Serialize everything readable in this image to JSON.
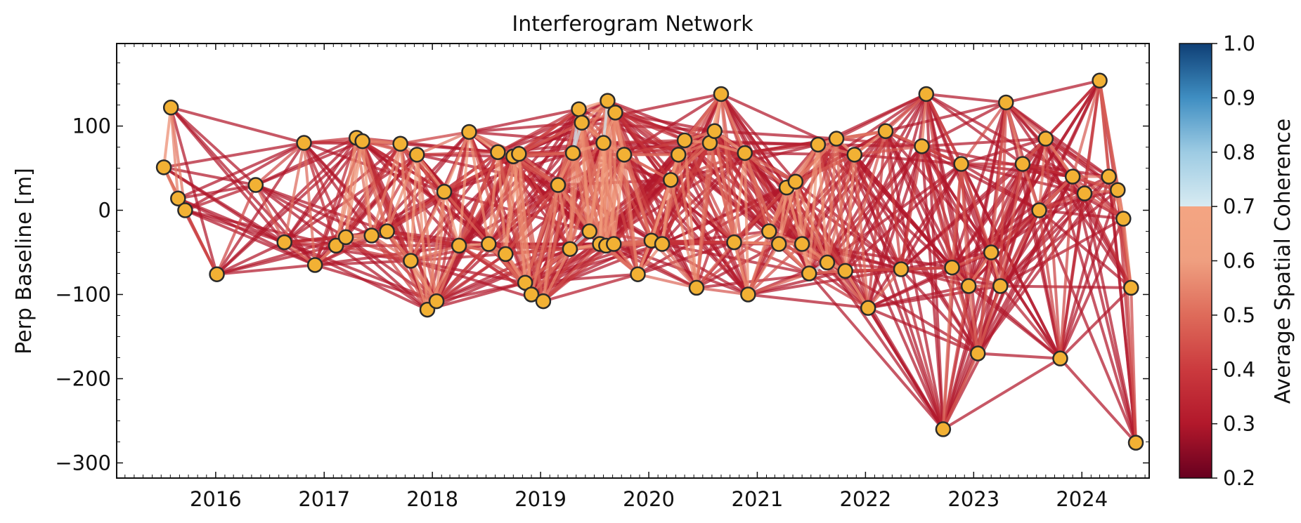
{
  "chart_data": {
    "type": "scatter",
    "title": "Interferogram Network",
    "xlabel": "",
    "ylabel": "Perp Baseline [m]",
    "xlim": [
      "2015-02-01",
      "2024-08-15"
    ],
    "ylim": [
      -318,
      198
    ],
    "xticks": [
      "2016",
      "2017",
      "2018",
      "2019",
      "2020",
      "2021",
      "2022",
      "2023",
      "2024"
    ],
    "yticks": [
      100,
      0,
      -100,
      -200,
      -300
    ],
    "ytick_labels": [
      "100",
      "0",
      "−100",
      "−200",
      "−300"
    ],
    "grid": false,
    "colorbar": {
      "label": "Average Spatial Coherence",
      "range": [
        0.2,
        1.0
      ],
      "ticks": [
        1.0,
        0.9,
        0.8,
        0.7,
        0.6,
        0.5,
        0.4,
        0.3,
        0.2
      ],
      "tick_labels": [
        "1.0",
        "0.9",
        "0.8",
        "0.7",
        "0.6",
        "0.5",
        "0.4",
        "0.3",
        "0.2"
      ],
      "colormap": "RdBu (0.2 to 0.7), lightened blue (0.7 to 1.0)"
    },
    "acquisitions": [
      {
        "date": "2015-07-10",
        "bperp": 51
      },
      {
        "date": "2015-08-03",
        "bperp": 122
      },
      {
        "date": "2015-08-27",
        "bperp": 14
      },
      {
        "date": "2015-09-20",
        "bperp": 0
      },
      {
        "date": "2016-01-05",
        "bperp": -76
      },
      {
        "date": "2016-05-15",
        "bperp": 30
      },
      {
        "date": "2016-08-20",
        "bperp": -38
      },
      {
        "date": "2016-10-25",
        "bperp": 80
      },
      {
        "date": "2016-12-01",
        "bperp": -65
      },
      {
        "date": "2017-02-10",
        "bperp": -42
      },
      {
        "date": "2017-03-15",
        "bperp": -32
      },
      {
        "date": "2017-04-20",
        "bperp": 86
      },
      {
        "date": "2017-05-10",
        "bperp": 82
      },
      {
        "date": "2017-06-10",
        "bperp": -30
      },
      {
        "date": "2017-08-01",
        "bperp": -25
      },
      {
        "date": "2017-09-15",
        "bperp": 79
      },
      {
        "date": "2017-10-20",
        "bperp": -60
      },
      {
        "date": "2017-11-10",
        "bperp": 66
      },
      {
        "date": "2017-12-15",
        "bperp": -118
      },
      {
        "date": "2018-01-15",
        "bperp": -108
      },
      {
        "date": "2018-02-10",
        "bperp": 22
      },
      {
        "date": "2018-04-01",
        "bperp": -42
      },
      {
        "date": "2018-05-05",
        "bperp": 93
      },
      {
        "date": "2018-07-10",
        "bperp": -40
      },
      {
        "date": "2018-08-10",
        "bperp": 69
      },
      {
        "date": "2018-09-05",
        "bperp": -52
      },
      {
        "date": "2018-10-01",
        "bperp": 64
      },
      {
        "date": "2018-10-20",
        "bperp": 67
      },
      {
        "date": "2018-11-10",
        "bperp": -86
      },
      {
        "date": "2018-12-01",
        "bperp": -100
      },
      {
        "date": "2019-01-10",
        "bperp": -108
      },
      {
        "date": "2019-03-01",
        "bperp": 30
      },
      {
        "date": "2019-04-10",
        "bperp": -46
      },
      {
        "date": "2019-04-20",
        "bperp": 68
      },
      {
        "date": "2019-05-10",
        "bperp": 120
      },
      {
        "date": "2019-05-20",
        "bperp": 104
      },
      {
        "date": "2019-06-15",
        "bperp": -25
      },
      {
        "date": "2019-07-20",
        "bperp": -40
      },
      {
        "date": "2019-08-01",
        "bperp": 80
      },
      {
        "date": "2019-08-10",
        "bperp": -42
      },
      {
        "date": "2019-08-15",
        "bperp": 130
      },
      {
        "date": "2019-09-05",
        "bperp": -40
      },
      {
        "date": "2019-09-10",
        "bperp": 116
      },
      {
        "date": "2019-10-10",
        "bperp": 66
      },
      {
        "date": "2019-11-25",
        "bperp": -76
      },
      {
        "date": "2020-01-10",
        "bperp": -36
      },
      {
        "date": "2020-02-15",
        "bperp": -40
      },
      {
        "date": "2020-03-15",
        "bperp": 36
      },
      {
        "date": "2020-04-10",
        "bperp": 66
      },
      {
        "date": "2020-05-01",
        "bperp": 83
      },
      {
        "date": "2020-06-10",
        "bperp": -92
      },
      {
        "date": "2020-07-25",
        "bperp": 80
      },
      {
        "date": "2020-08-10",
        "bperp": 94
      },
      {
        "date": "2020-09-01",
        "bperp": 138
      },
      {
        "date": "2020-10-15",
        "bperp": -38
      },
      {
        "date": "2020-11-20",
        "bperp": 68
      },
      {
        "date": "2020-12-01",
        "bperp": -100
      },
      {
        "date": "2021-02-10",
        "bperp": -25
      },
      {
        "date": "2021-03-15",
        "bperp": -40
      },
      {
        "date": "2021-04-10",
        "bperp": 27
      },
      {
        "date": "2021-05-10",
        "bperp": 34
      },
      {
        "date": "2021-06-01",
        "bperp": -40
      },
      {
        "date": "2021-06-25",
        "bperp": -75
      },
      {
        "date": "2021-07-25",
        "bperp": 78
      },
      {
        "date": "2021-08-25",
        "bperp": -62
      },
      {
        "date": "2021-09-25",
        "bperp": 85
      },
      {
        "date": "2021-10-25",
        "bperp": -72
      },
      {
        "date": "2021-11-25",
        "bperp": 66
      },
      {
        "date": "2022-01-10",
        "bperp": -116
      },
      {
        "date": "2022-03-10",
        "bperp": 94
      },
      {
        "date": "2022-05-01",
        "bperp": -70
      },
      {
        "date": "2022-07-10",
        "bperp": 76
      },
      {
        "date": "2022-07-25",
        "bperp": 138
      },
      {
        "date": "2022-09-20",
        "bperp": -260
      },
      {
        "date": "2022-10-20",
        "bperp": -68
      },
      {
        "date": "2022-11-20",
        "bperp": 55
      },
      {
        "date": "2022-12-15",
        "bperp": -90
      },
      {
        "date": "2023-01-15",
        "bperp": -170
      },
      {
        "date": "2023-03-01",
        "bperp": -50
      },
      {
        "date": "2023-04-01",
        "bperp": -90
      },
      {
        "date": "2023-04-20",
        "bperp": 128
      },
      {
        "date": "2023-06-15",
        "bperp": 55
      },
      {
        "date": "2023-08-10",
        "bperp": 0
      },
      {
        "date": "2023-09-01",
        "bperp": 85
      },
      {
        "date": "2023-10-20",
        "bperp": -176
      },
      {
        "date": "2023-12-01",
        "bperp": 40
      },
      {
        "date": "2024-01-10",
        "bperp": 20
      },
      {
        "date": "2024-03-01",
        "bperp": 154
      },
      {
        "date": "2024-04-01",
        "bperp": 40
      },
      {
        "date": "2024-05-01",
        "bperp": 24
      },
      {
        "date": "2024-05-20",
        "bperp": -10
      },
      {
        "date": "2024-06-15",
        "bperp": -92
      },
      {
        "date": "2024-07-01",
        "bperp": -276
      }
    ]
  }
}
